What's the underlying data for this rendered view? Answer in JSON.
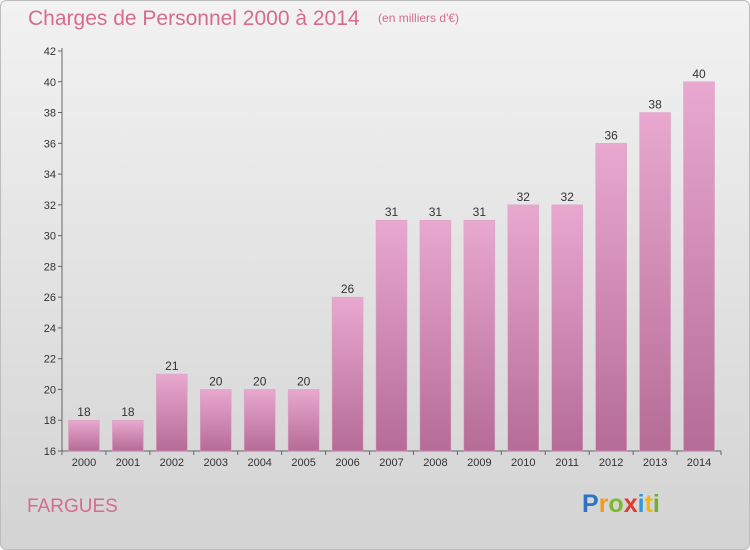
{
  "header": {
    "title": "Charges de Personnel 2000 à 2014",
    "subtitle": "(en milliers d'€)"
  },
  "place": "FARGUES",
  "logo": {
    "text": "Proxiti"
  },
  "colors": {
    "bar_top": "#e8a8cf",
    "bar_bottom": "#b56c97",
    "title": "#d56c8e"
  },
  "chart_data": {
    "type": "bar",
    "title": "Charges de Personnel 2000 à 2014",
    "subtitle": "(en milliers d'€)",
    "xlabel": "",
    "ylabel": "",
    "ylim": [
      16,
      42
    ],
    "yticks": [
      16,
      18,
      20,
      22,
      24,
      26,
      28,
      30,
      32,
      34,
      36,
      38,
      40,
      42
    ],
    "grid": false,
    "categories": [
      "2000",
      "2001",
      "2002",
      "2003",
      "2004",
      "2005",
      "2006",
      "2007",
      "2008",
      "2009",
      "2010",
      "2011",
      "2012",
      "2013",
      "2014"
    ],
    "values": [
      18,
      18,
      21,
      20,
      20,
      20,
      26,
      31,
      31,
      31,
      32,
      32,
      36,
      38,
      40
    ]
  }
}
